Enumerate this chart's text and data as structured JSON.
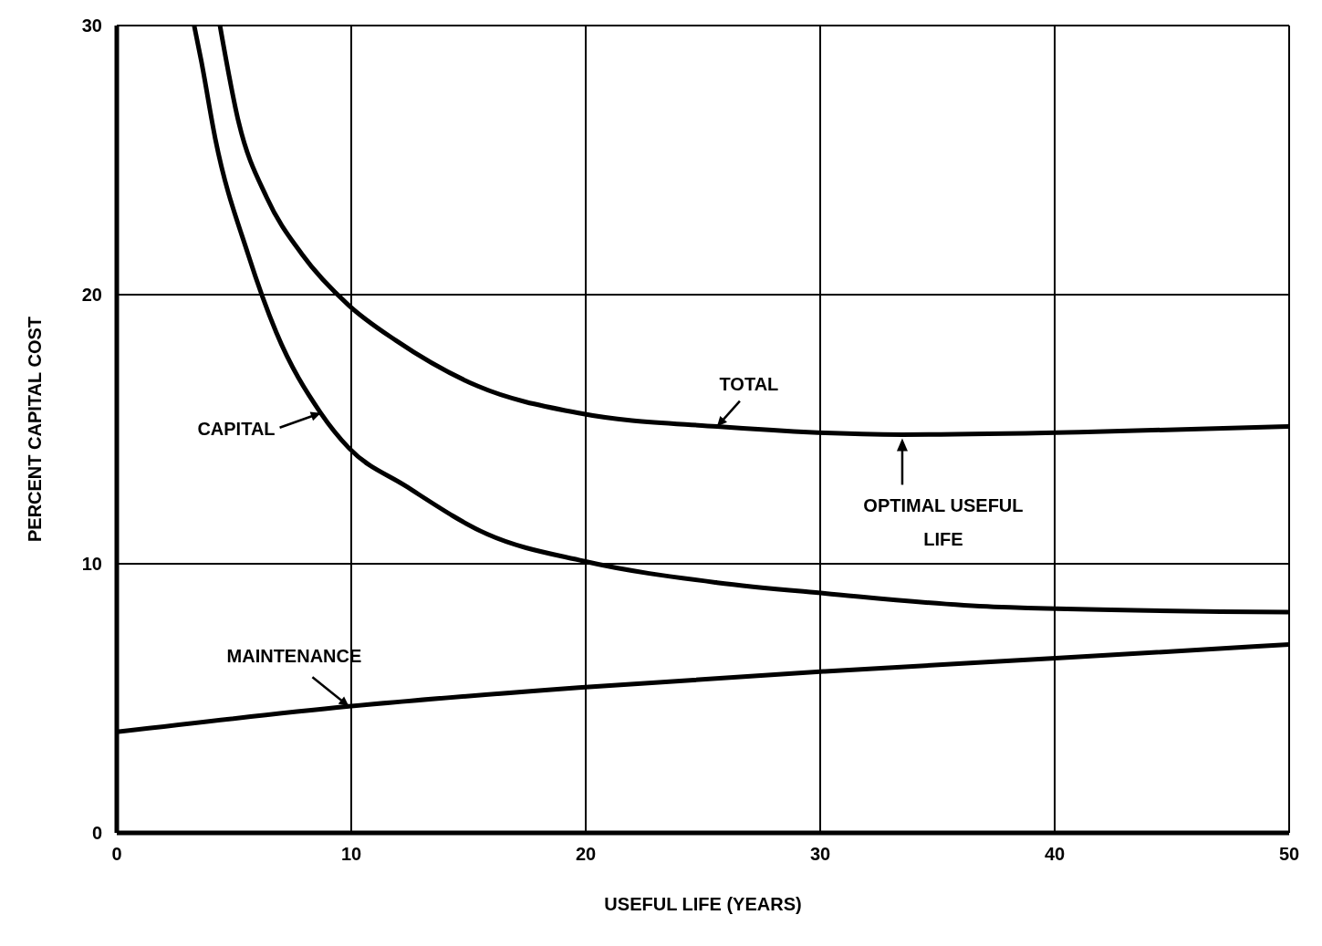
{
  "chart_data": {
    "type": "line",
    "xlabel": "USEFUL LIFE (YEARS)",
    "ylabel": "PERCENT CAPITAL COST",
    "xlim": [
      0,
      50
    ],
    "ylim": [
      0,
      30
    ],
    "xticks": [
      0,
      10,
      20,
      30,
      40,
      50
    ],
    "yticks": [
      0,
      10,
      20,
      30
    ],
    "grid": true,
    "series": [
      {
        "name": "TOTAL",
        "color": "#000000",
        "x": [
          4.4,
          5.2,
          6.4,
          7.9,
          9.9,
          11.9,
          15.4,
          19.7,
          25.6,
          33.5,
          41.4,
          50
        ],
        "values": [
          30,
          26.4,
          23.6,
          21.5,
          19.6,
          18.3,
          16.6,
          15.6,
          15.1,
          14.8,
          14.9,
          15.1
        ]
      },
      {
        "name": "CAPITAL",
        "color": "#000000",
        "x": [
          3.3,
          3.6,
          4.2,
          5.6,
          6.8,
          8.7,
          9.9,
          12.3,
          15.8,
          19.9,
          25.6,
          30.2,
          37.4,
          50
        ],
        "values": [
          30,
          28.7,
          25.8,
          21.5,
          18.6,
          15.6,
          14.3,
          12.9,
          11.1,
          10.1,
          9.3,
          8.9,
          8.4,
          8.2
        ]
      },
      {
        "name": "MAINTENANCE",
        "color": "#000000",
        "x": [
          0,
          9.9,
          19.7,
          30.2,
          40.2,
          50
        ],
        "values": [
          3.75,
          4.7,
          5.4,
          6.0,
          6.5,
          7.0
        ]
      }
    ],
    "annotations": [
      {
        "text": "OPTIMAL USEFUL LIFE",
        "x": 33.5,
        "y": 14.8
      }
    ]
  }
}
